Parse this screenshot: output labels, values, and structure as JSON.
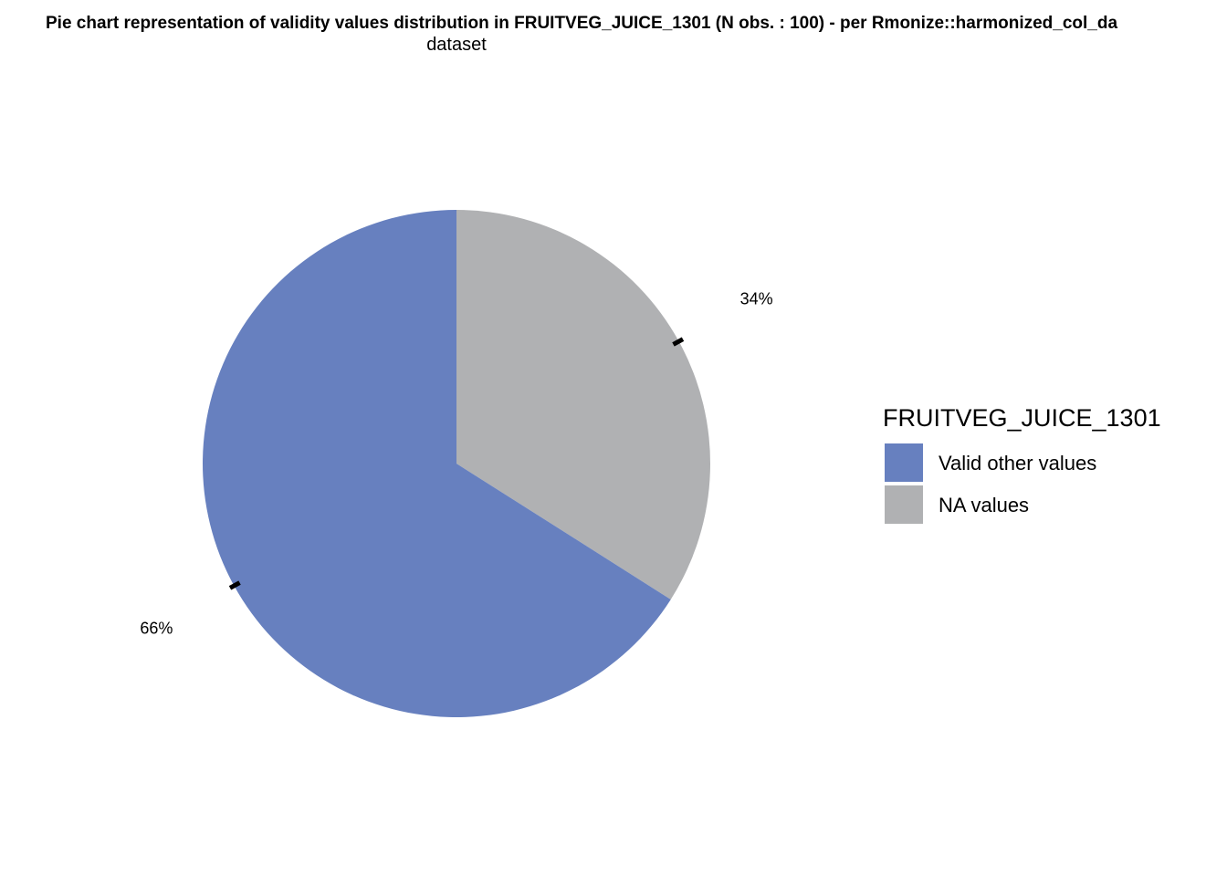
{
  "chart_data": {
    "type": "pie",
    "title": "Pie chart representation of validity values distribution in FRUITVEG_JUICE_1301 (N obs. : 100) - per Rmonize::harmonized_col_da",
    "subtitle": "dataset",
    "legend_title": "FRUITVEG_JUICE_1301",
    "legend_position": "right",
    "slices": [
      {
        "name": "Valid other values",
        "value": 66,
        "label": "66%",
        "color": "#6780BF"
      },
      {
        "name": "NA values",
        "value": 34,
        "label": "34%",
        "color": "#B0B1B3"
      }
    ]
  }
}
